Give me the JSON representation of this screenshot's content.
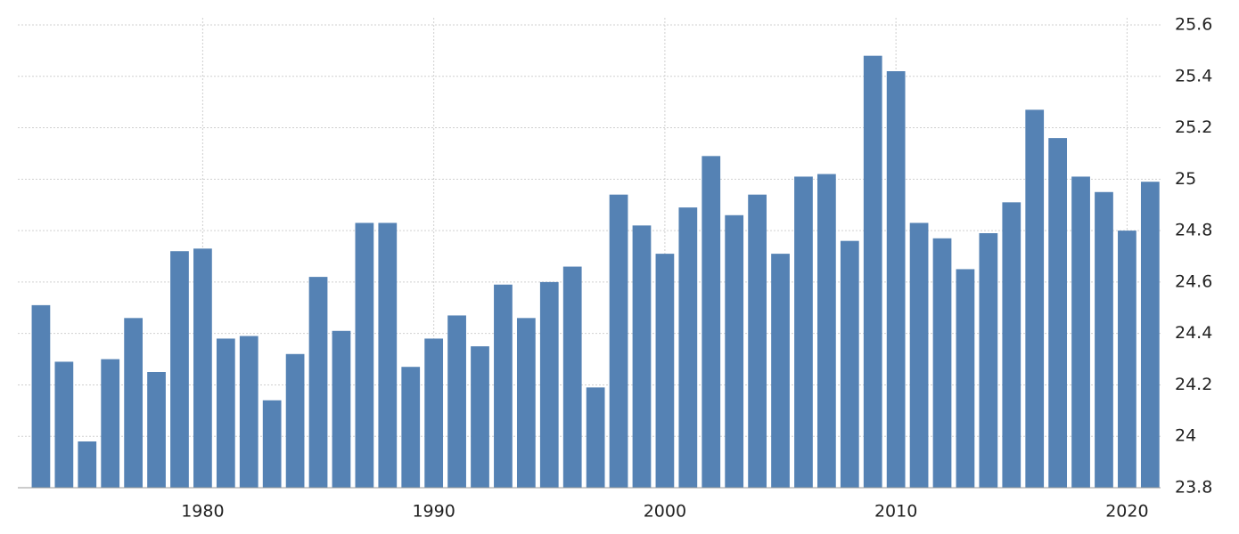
{
  "chart_data": {
    "type": "bar",
    "x": [
      1973,
      1974,
      1975,
      1976,
      1977,
      1978,
      1979,
      1980,
      1981,
      1982,
      1983,
      1984,
      1985,
      1986,
      1987,
      1988,
      1989,
      1990,
      1991,
      1992,
      1993,
      1994,
      1995,
      1996,
      1997,
      1998,
      1999,
      2000,
      2001,
      2002,
      2003,
      2004,
      2005,
      2006,
      2007,
      2008,
      2009,
      2010,
      2011,
      2012,
      2013,
      2014,
      2015,
      2016,
      2017,
      2018,
      2019,
      2020,
      2021
    ],
    "values": [
      24.51,
      24.29,
      23.98,
      24.3,
      24.46,
      24.25,
      24.72,
      24.73,
      24.38,
      24.39,
      24.14,
      24.32,
      24.62,
      24.41,
      24.83,
      24.83,
      24.27,
      24.38,
      24.47,
      24.35,
      24.59,
      24.46,
      24.6,
      24.66,
      24.19,
      24.94,
      24.82,
      24.71,
      24.89,
      25.09,
      24.86,
      24.94,
      24.71,
      25.01,
      25.02,
      24.76,
      25.48,
      25.42,
      24.83,
      24.77,
      24.65,
      24.79,
      24.91,
      25.27,
      25.16,
      25.01,
      24.95,
      24.8,
      24.99
    ],
    "color": "#5582b4",
    "xlim": [
      1972,
      2021.45
    ],
    "xticks": [
      1980,
      1990,
      2000,
      2010,
      2020
    ],
    "ylim": [
      23.8,
      25.6
    ],
    "yticks": [
      23.8,
      24,
      24.2,
      24.4,
      24.6,
      24.8,
      25,
      25.2,
      25.4,
      25.6
    ],
    "grid": true
  }
}
